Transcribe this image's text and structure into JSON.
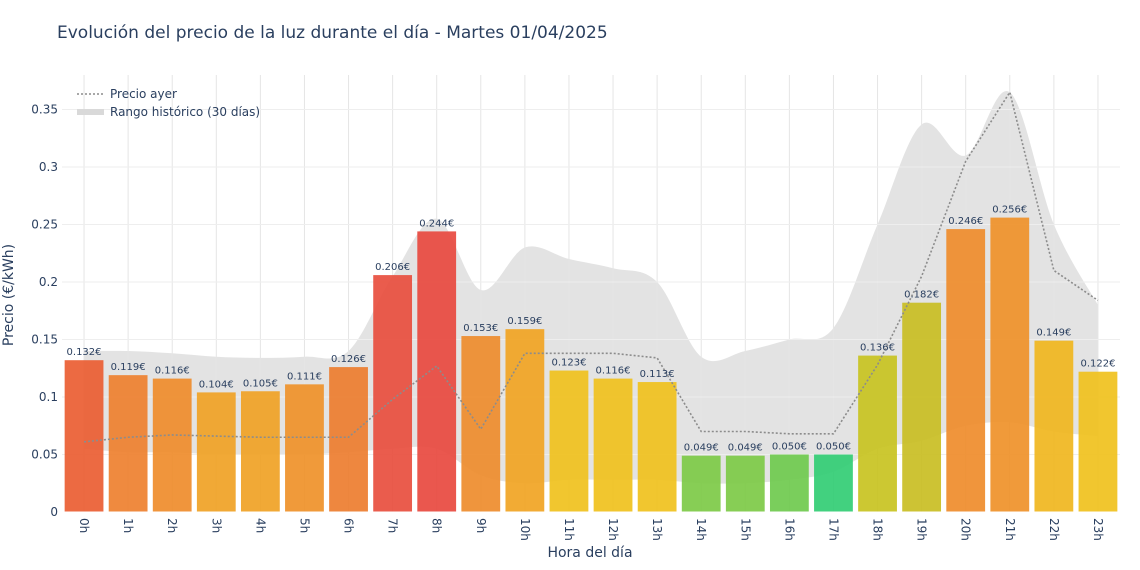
{
  "chart_data": {
    "type": "bar",
    "title": "Evolución del precio de la luz durante el día - Martes 01/04/2025",
    "xlabel": "Hora del día",
    "ylabel": "Precio (€/kWh)",
    "ylim": [
      0,
      0.38
    ],
    "yticks": [
      0,
      0.05,
      0.1,
      0.15,
      0.2,
      0.25,
      0.3,
      0.35
    ],
    "ytick_labels": [
      "0",
      "0.05",
      "0.1",
      "0.15",
      "0.2",
      "0.25",
      "0.3",
      "0.35"
    ],
    "grid": true,
    "legend_position": "top-left",
    "categories": [
      "0h",
      "1h",
      "2h",
      "3h",
      "4h",
      "5h",
      "6h",
      "7h",
      "8h",
      "9h",
      "10h",
      "11h",
      "12h",
      "13h",
      "14h",
      "15h",
      "16h",
      "17h",
      "18h",
      "19h",
      "20h",
      "21h",
      "22h",
      "23h"
    ],
    "values": [
      0.132,
      0.119,
      0.116,
      0.104,
      0.105,
      0.111,
      0.126,
      0.206,
      0.244,
      0.153,
      0.159,
      0.123,
      0.116,
      0.113,
      0.049,
      0.049,
      0.05,
      0.05,
      0.136,
      0.182,
      0.246,
      0.256,
      0.149,
      0.122
    ],
    "bar_labels": [
      "0.132€",
      "0.119€",
      "0.116€",
      "0.104€",
      "0.105€",
      "0.111€",
      "0.126€",
      "0.206€",
      "0.244€",
      "0.153€",
      "0.159€",
      "0.123€",
      "0.116€",
      "0.113€",
      "0.049€",
      "0.049€",
      "0.050€",
      "0.050€",
      "0.136€",
      "0.182€",
      "0.246€",
      "0.256€",
      "0.149€",
      "0.122€"
    ],
    "bar_colors": [
      "#ea5a2e",
      "#ed7d2a",
      "#ee8a27",
      "#f0a020",
      "#f0a020",
      "#ee8f25",
      "#ec7a2a",
      "#e84a3a",
      "#e8453b",
      "#ed8a28",
      "#f1a21e",
      "#f0c018",
      "#f0c018",
      "#f0c018",
      "#7ac943",
      "#7ac943",
      "#6cc94a",
      "#2ecc71",
      "#c7c21c",
      "#c8bc1e",
      "#ee8a27",
      "#ee8f25",
      "#f0b51a",
      "#f0c018"
    ],
    "series": [
      {
        "name": "Precio ayer",
        "style": "dotted",
        "color": "#8c8c8c",
        "values": [
          0.061,
          0.065,
          0.067,
          0.066,
          0.065,
          0.065,
          0.065,
          0.098,
          0.127,
          0.072,
          0.138,
          0.138,
          0.138,
          0.134,
          0.07,
          0.07,
          0.068,
          0.068,
          0.128,
          0.205,
          0.305,
          0.365,
          0.21,
          0.184
        ]
      },
      {
        "name": "Rango histórico (30 días)",
        "style": "band",
        "color": "#d9d9d9",
        "upper": [
          0.14,
          0.14,
          0.138,
          0.135,
          0.134,
          0.135,
          0.14,
          0.205,
          0.255,
          0.193,
          0.23,
          0.22,
          0.212,
          0.2,
          0.135,
          0.14,
          0.15,
          0.16,
          0.25,
          0.337,
          0.31,
          0.365,
          0.25,
          0.18
        ],
        "lower": [
          0.055,
          0.052,
          0.052,
          0.05,
          0.05,
          0.05,
          0.052,
          0.055,
          0.055,
          0.032,
          0.025,
          0.028,
          0.028,
          0.028,
          0.025,
          0.025,
          0.028,
          0.035,
          0.055,
          0.062,
          0.075,
          0.078,
          0.07,
          0.066
        ]
      }
    ]
  }
}
